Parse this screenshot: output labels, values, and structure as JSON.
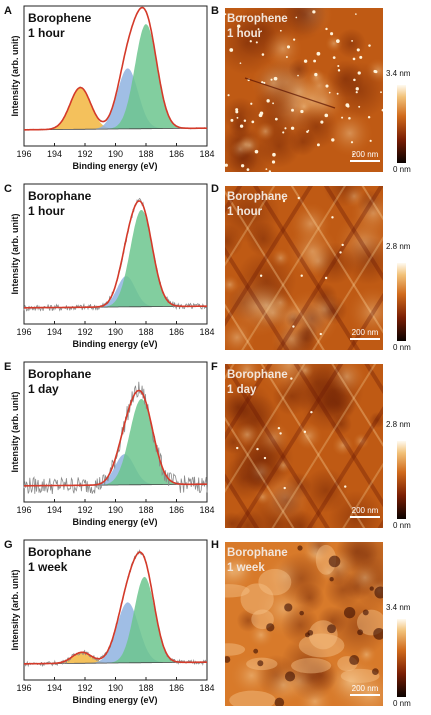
{
  "panels": [
    {
      "letter": "A",
      "title": [
        "Borophene",
        "1 hour"
      ]
    },
    {
      "letter": "C",
      "title": [
        "Borophane",
        "1 hour"
      ]
    },
    {
      "letter": "E",
      "title": [
        "Borophane",
        "1 day"
      ]
    },
    {
      "letter": "G",
      "title": [
        "Borophane",
        "1 week"
      ]
    }
  ],
  "images": [
    {
      "letter": "B",
      "title": [
        "Borophene",
        "1 hour"
      ],
      "cb_max": "3.4 nm",
      "cb_min": "0 nm",
      "scale_bar": "200 nm",
      "style": "dots"
    },
    {
      "letter": "D",
      "title": [
        "Borophane",
        "1 hour"
      ],
      "cb_max": "2.8 nm",
      "cb_min": "0 nm",
      "scale_bar": "200 nm",
      "style": "lattice"
    },
    {
      "letter": "F",
      "title": [
        "Borophane",
        "1 day"
      ],
      "cb_max": "2.8 nm",
      "cb_min": "0 nm",
      "scale_bar": "200 nm",
      "style": "lattice"
    },
    {
      "letter": "H",
      "title": [
        "Borophane",
        "1 week"
      ],
      "cb_max": "3.4 nm",
      "cb_min": "0 nm",
      "scale_bar": "200 nm",
      "style": "blotch"
    }
  ],
  "colors": {
    "fit": "#d43a2a",
    "raw": "#8a8a8a",
    "peak_B": "#f2b640",
    "peak_M": "#8fb3e0",
    "peak_L": "#6cc58e",
    "bg": "#444444"
  },
  "chart_data": [
    {
      "type": "line",
      "xlabel": "Binding energy (eV)",
      "ylabel": "Intensity (arb. unit)",
      "xlim": [
        196,
        184
      ],
      "x_ticks": [
        196,
        194,
        192,
        190,
        188,
        186,
        184
      ],
      "peaks": [
        {
          "center": 192.3,
          "fwhm": 1.6,
          "height": 0.38,
          "color": "#f2b640"
        },
        {
          "center": 189.2,
          "fwhm": 1.6,
          "height": 0.55,
          "color": "#8fb3e0"
        },
        {
          "center": 188.0,
          "fwhm": 1.7,
          "height": 0.95,
          "color": "#6cc58e"
        }
      ],
      "noise": 0.005
    },
    {
      "type": "line",
      "xlabel": "Binding energy (eV)",
      "ylabel": "Intensity (arb. unit)",
      "xlim": [
        196,
        184
      ],
      "x_ticks": [
        196,
        194,
        192,
        190,
        188,
        186,
        184
      ],
      "peaks": [
        {
          "center": 189.3,
          "fwhm": 1.4,
          "height": 0.28,
          "color": "#8fb3e0"
        },
        {
          "center": 188.3,
          "fwhm": 1.7,
          "height": 0.88,
          "color": "#6cc58e"
        }
      ],
      "noise": 0.03
    },
    {
      "type": "line",
      "xlabel": "Binding energy (eV)",
      "ylabel": "Intensity (arb. unit)",
      "xlim": [
        196,
        184
      ],
      "x_ticks": [
        196,
        194,
        192,
        190,
        188,
        186,
        184
      ],
      "peaks": [
        {
          "center": 189.4,
          "fwhm": 1.5,
          "height": 0.28,
          "color": "#8fb3e0"
        },
        {
          "center": 188.3,
          "fwhm": 1.8,
          "height": 0.78,
          "color": "#6cc58e"
        }
      ],
      "noise": 0.08
    },
    {
      "type": "line",
      "xlabel": "Binding energy (eV)",
      "ylabel": "Intensity (arb. unit)",
      "xlim": [
        196,
        184
      ],
      "x_ticks": [
        196,
        194,
        192,
        190,
        188,
        186,
        184
      ],
      "peaks": [
        {
          "center": 192.2,
          "fwhm": 1.5,
          "height": 0.1,
          "color": "#f2b640"
        },
        {
          "center": 189.2,
          "fwhm": 1.7,
          "height": 0.55,
          "color": "#8fb3e0"
        },
        {
          "center": 188.1,
          "fwhm": 1.6,
          "height": 0.78,
          "color": "#6cc58e"
        }
      ],
      "noise": 0.02
    }
  ]
}
